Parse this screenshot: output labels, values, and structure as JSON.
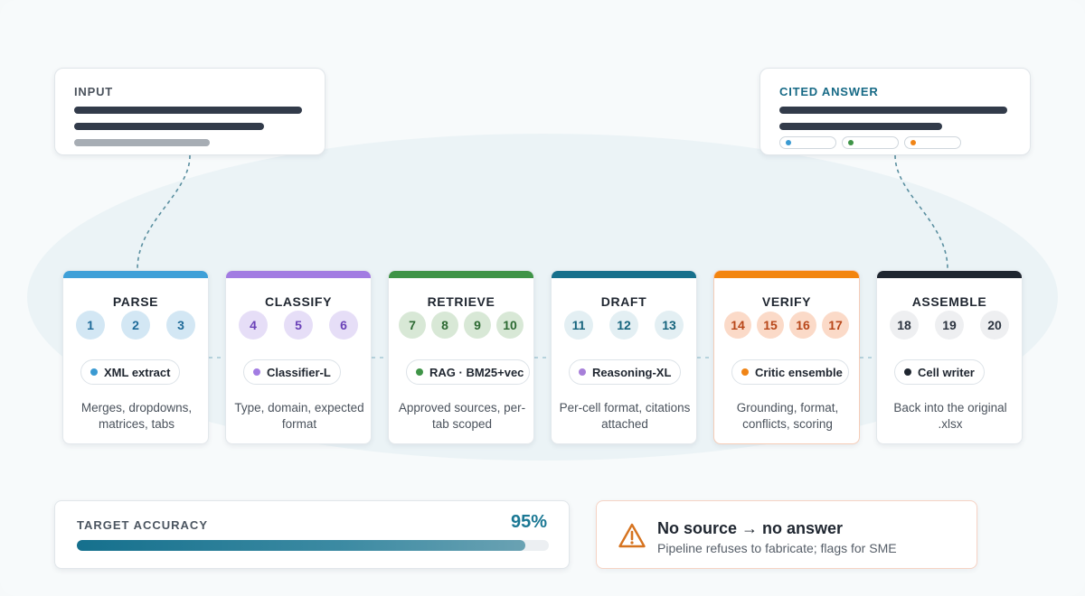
{
  "input_card": {
    "title": "INPUT"
  },
  "output_card": {
    "title": "CITED ANSWER",
    "citation_chips": [
      {
        "color": "#3a9ad2"
      },
      {
        "color": "#3f9447"
      },
      {
        "color": "#f08416"
      }
    ]
  },
  "stages": [
    {
      "title": "PARSE",
      "accent": "#3fa0d8",
      "numbers": [
        "1",
        "2",
        "3"
      ],
      "num_bg": "#d3e7f4",
      "num_color": "#1f6b99",
      "model": "XML extract",
      "model_dot": "#3a9ad2",
      "description": "Merges, dropdowns, matrices, tabs"
    },
    {
      "title": "CLASSIFY",
      "accent": "#a27ce2",
      "numbers": [
        "4",
        "5",
        "6"
      ],
      "num_bg": "#e6def7",
      "num_color": "#6a41b8",
      "model": "Classifier-L",
      "model_dot": "#a27ce2",
      "description": "Type, domain, expected format"
    },
    {
      "title": "RETRIEVE",
      "accent": "#3f9447",
      "numbers": [
        "7",
        "8",
        "9",
        "10"
      ],
      "num_bg": "#d8e8d6",
      "num_color": "#2d6a33",
      "model": "RAG · BM25+vec",
      "model_dot": "#3f9447",
      "description": "Approved sources, per-tab scoped"
    },
    {
      "title": "DRAFT",
      "accent": "#17708c",
      "numbers": [
        "11",
        "12",
        "13"
      ],
      "num_bg": "#e3eff3",
      "num_color": "#16647d",
      "model": "Reasoning-XL",
      "model_dot": "#a77fd9",
      "description": "Per-cell format, citations attached"
    },
    {
      "title": "VERIFY",
      "accent": "#f3850f",
      "numbers": [
        "14",
        "15",
        "16",
        "17"
      ],
      "num_bg": "#fbdac8",
      "num_color": "#b8471a",
      "model": "Critic ensemble",
      "model_dot": "#f08416",
      "description": "Grounding, format, conflicts, scoring"
    },
    {
      "title": "ASSEMBLE",
      "accent": "#1f2630",
      "numbers": [
        "18",
        "19",
        "20"
      ],
      "num_bg": "#eeeff1",
      "num_color": "#2c3440",
      "model": "Cell writer",
      "model_dot": "#1f2630",
      "description": "Back into the original .xlsx"
    }
  ],
  "accuracy": {
    "label": "TARGET ACCURACY",
    "value": "95%",
    "fraction": 0.95
  },
  "notice": {
    "title": "No source → no answer",
    "subtitle": "Pipeline refuses to fabricate; flags for SME",
    "icon": "warning-icon"
  }
}
